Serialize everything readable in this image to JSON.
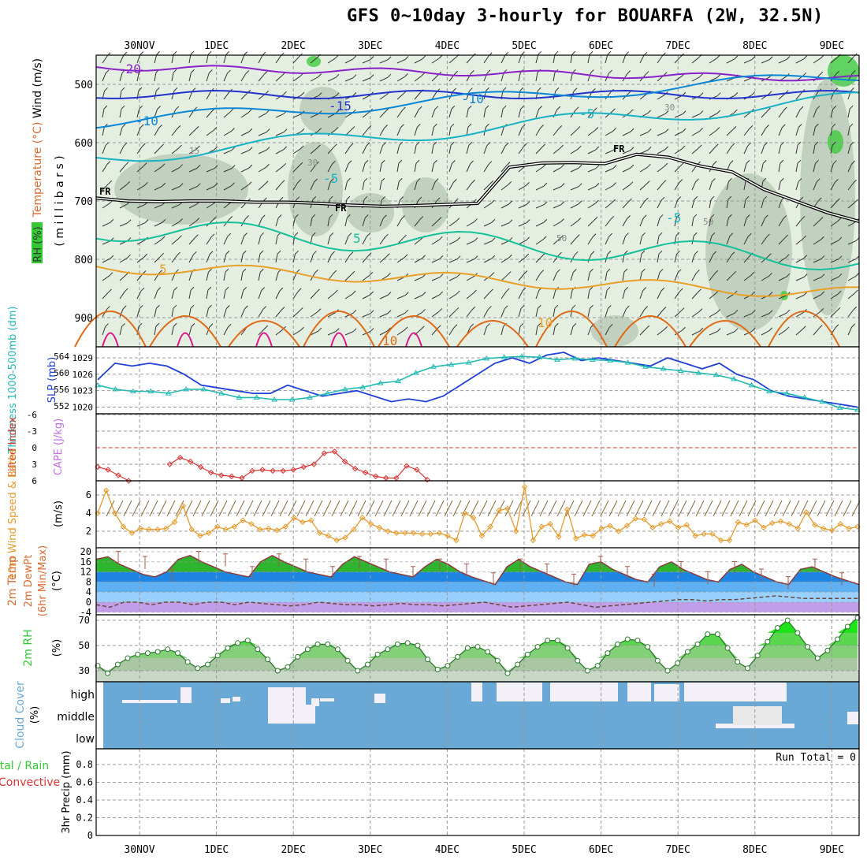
{
  "title": "GFS 0~10day 3-hourly for BOUARFA (2W, 32.5N)",
  "colors": {
    "rh_light": "#e4efe2",
    "rh_mid": "#b9c9b7",
    "rh_dark": "#8fa28c",
    "rh_green": "#34c934",
    "temp_m20": "#8a22c9",
    "temp_m15": "#2233cc",
    "temp_m10": "#0b86d6",
    "temp_m5": "#17b2c4",
    "temp_p5": "#15c09a",
    "temp_10": "#e8a028",
    "temp_15": "#e06a16",
    "temp_20": "#e0148a",
    "slp": "#1f3fd6",
    "thickness": "#22b9b3",
    "lifted_index": "#d83434",
    "wind_speed": "#e59a2a",
    "cloud": "#6aa9d6",
    "cloud_clear": "#f4f0f7"
  },
  "chart_data": [
    {
      "id": "upper_air",
      "type": "heatmap",
      "ylabel_parts": [
        "RH (%)",
        "Temperature (°C)",
        "Wind (m/s)"
      ],
      "ylabel_units": "( m i l l i b a r s )",
      "x_dates": [
        "30NOV",
        "1DEC",
        "2DEC",
        "3DEC",
        "4DEC",
        "5DEC",
        "6DEC",
        "7DEC",
        "8DEC",
        "9DEC"
      ],
      "y_ticks": [
        500,
        600,
        700,
        800,
        900
      ],
      "ylim": [
        450,
        950
      ],
      "contour_labels": [
        "-20",
        "-15",
        "-10",
        "-10",
        "-5",
        "-5",
        "-5",
        "5",
        "5",
        "10",
        "10",
        "15",
        "30",
        "30",
        "50",
        "50",
        "10"
      ],
      "freezing_label": "FR",
      "freezing_level_mb": [
        695,
        700,
        701,
        700,
        700,
        702,
        702,
        704,
        707,
        709,
        708,
        706,
        704,
        642,
        635,
        634,
        636,
        620,
        625,
        640,
        650,
        680,
        700,
        720,
        735
      ]
    },
    {
      "id": "slp_thickness",
      "type": "line",
      "left_label": "Thickness 1000-500mb (dm)",
      "right_label": "SLP (mb)",
      "left_ticks": [
        552,
        556,
        560,
        564
      ],
      "right_ticks": [
        1020,
        1023,
        1026,
        1029
      ],
      "series": [
        {
          "name": "SLP",
          "values": [
            1025,
            1028,
            1027.5,
            1028,
            1027.5,
            1026,
            1024,
            1023.5,
            1023,
            1022.5,
            1022.5,
            1024,
            1023,
            1022,
            1022.5,
            1023,
            1022,
            1021,
            1021.5,
            1021,
            1022,
            1024,
            1026,
            1028,
            1029,
            1028,
            1029.5,
            1030,
            1028.5,
            1029,
            1028.5,
            1028,
            1027.5,
            1029,
            1028,
            1027,
            1028,
            1026,
            1025,
            1023,
            1022,
            1021.5,
            1021,
            1020.5,
            1020
          ]
        },
        {
          "name": "Thickness",
          "values": [
            557,
            556,
            555.5,
            555.5,
            555,
            556,
            556,
            555,
            554,
            554,
            553.5,
            553.5,
            554,
            555,
            556,
            556.5,
            557.5,
            558,
            560,
            561.5,
            562,
            562.5,
            563.5,
            563.8,
            564,
            563.8,
            563.2,
            563.5,
            563.2,
            563,
            562.5,
            561.5,
            561,
            560.5,
            560,
            559.5,
            558.5,
            557,
            555.5,
            555,
            554,
            553,
            551.5,
            551
          ]
        }
      ]
    },
    {
      "id": "lifted_index_cape",
      "type": "line",
      "left_label": "Lifted Index",
      "right_label": "CAPE (J/kg)",
      "y_ticks": [
        -6,
        -3,
        0,
        3,
        6
      ],
      "series": [
        {
          "name": "Lifted Index",
          "values": [
            3.5,
            4,
            5,
            6,
            null,
            null,
            null,
            3,
            1.8,
            2.5,
            3.5,
            4.5,
            5,
            5.2,
            5.5,
            4.2,
            4,
            4.2,
            4.2,
            4,
            3.5,
            3,
            1,
            0.7,
            2.5,
            3.8,
            4.5,
            5.2,
            5.5,
            5.5,
            3.3,
            4,
            5.8
          ]
        }
      ]
    },
    {
      "id": "wind_10m",
      "type": "line",
      "left_label": "10m Wind Speed & Barbs",
      "right_label": "(m/s)",
      "y_ticks": [
        2,
        4,
        6
      ],
      "series": [
        {
          "name": "10m Wind Speed",
          "values": [
            4,
            6.5,
            4,
            2.5,
            1.8,
            2.3,
            2.2,
            2.2,
            2.3,
            3,
            4.8,
            2.2,
            1.5,
            1.8,
            2.5,
            2.2,
            2.5,
            3.2,
            2.8,
            2.2,
            2.3,
            2.1,
            2.5,
            3.5,
            3,
            3.2,
            1.8,
            1.5,
            1,
            1.3,
            2.2,
            3.5,
            2.8,
            2.4,
            2,
            1.8,
            1.8,
            1.8,
            1.7,
            1.7,
            1.8,
            1.5,
            1,
            4,
            3.5,
            1.5,
            2.5,
            4.3,
            4.5,
            2,
            6.9,
            1,
            2.5,
            2.8,
            1.4,
            4.4,
            1.2,
            1.6,
            1.5,
            2.3,
            2.6,
            2,
            2.6,
            3.4,
            3.3,
            2.4,
            2.8,
            3.1,
            2.4,
            2.7,
            1.5,
            1.7,
            1.7,
            1,
            1,
            3,
            2.7,
            3.2,
            2.4,
            2.9,
            3.1,
            2.8,
            2.3,
            4.1,
            2.7,
            2.3,
            2.1,
            2.8,
            2.3,
            2.5
          ]
        }
      ]
    },
    {
      "id": "temp_2m",
      "type": "area",
      "left_label": "2m Temp",
      "mid_label": "2m DewPt",
      "range_label": "(6hr Min/Max)",
      "units": "(°C)",
      "y_ticks": [
        -4,
        0,
        4,
        8,
        12,
        16,
        20
      ],
      "series": [
        {
          "name": "2m Temp",
          "values": [
            17,
            18,
            15,
            13,
            11,
            10,
            12,
            17,
            18.5,
            16,
            14,
            12,
            11,
            10,
            16,
            18.5,
            16,
            14,
            12,
            11,
            10,
            15,
            18,
            16,
            14,
            12,
            11,
            10,
            14,
            17,
            15,
            12,
            10,
            8.5,
            7,
            14,
            17,
            14,
            12,
            10,
            8,
            7,
            15,
            16,
            13,
            11,
            9,
            8,
            14,
            16,
            13,
            11,
            9,
            8,
            13,
            15,
            12,
            10,
            8,
            7,
            13,
            14,
            12,
            10,
            8.5,
            7
          ]
        },
        {
          "name": "2m DewPt",
          "values": [
            -1,
            -2,
            0,
            0,
            -1,
            0,
            0,
            -1,
            0,
            0,
            -1,
            0,
            -0.5,
            -1,
            -1.5,
            -1,
            0,
            -0.5,
            -1,
            -1,
            -1.5,
            -1,
            -0.5,
            -1,
            -1,
            -1.5,
            -1,
            -0.5,
            0,
            -1,
            -2,
            -1.5,
            -1,
            -0.5,
            0,
            -1,
            -2,
            -1.5,
            -1,
            -0.5,
            0,
            0.5,
            1,
            1,
            0.5,
            1,
            1,
            1.5,
            2,
            2.5,
            2,
            1.5,
            1.5,
            1.5,
            1.5,
            1.5
          ]
        }
      ]
    },
    {
      "id": "rh_2m",
      "type": "area",
      "left_label": "2m RH",
      "units": "(%)",
      "y_ticks": [
        30,
        50,
        70
      ],
      "series": [
        {
          "name": "2m RH",
          "values": [
            34,
            28,
            35,
            40,
            43,
            44,
            45,
            47,
            44,
            37,
            32,
            35,
            42,
            48,
            52,
            54,
            47,
            39,
            30,
            33,
            41,
            47,
            51,
            51,
            47,
            38,
            30,
            35,
            43,
            47,
            51,
            52,
            50,
            39,
            31,
            34,
            41,
            48,
            49,
            45,
            38,
            28,
            35,
            43,
            49,
            54,
            54,
            48,
            38,
            30,
            34,
            44,
            51,
            55,
            54,
            49,
            38,
            30,
            36,
            45,
            51,
            59,
            59,
            48,
            37,
            32,
            42,
            53,
            64,
            70,
            60,
            49,
            40,
            46,
            55,
            65,
            72
          ]
        }
      ]
    },
    {
      "id": "cloud_cover",
      "type": "heatmap",
      "left_label": "Cloud Cover",
      "units": "(%)",
      "levels": [
        "high",
        "middle",
        "low"
      ]
    },
    {
      "id": "precip",
      "type": "bar",
      "left_label_1": "Total / Rain",
      "left_label_2": "Convective",
      "ylabel": "3hr Precip (mm)",
      "y_ticks": [
        0,
        0.2,
        0.4,
        0.6,
        0.8
      ],
      "run_total": "Run Total = 0",
      "values": []
    }
  ]
}
